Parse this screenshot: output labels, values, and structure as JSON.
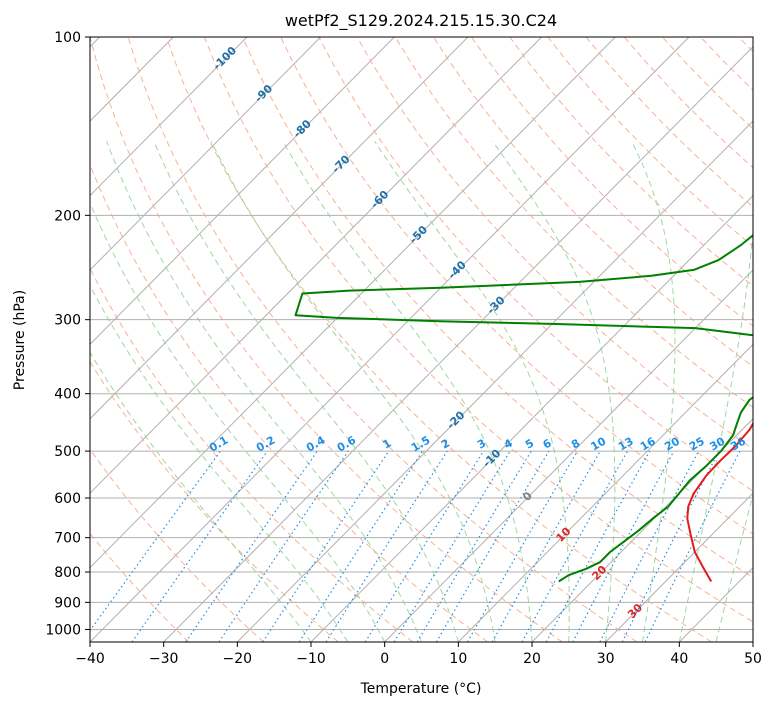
{
  "chart_data": {
    "type": "line",
    "title": "wetPf2_S129.2024.215.15.30.C24",
    "xlabel": "Temperature (°C)",
    "ylabel": "Pressure (hPa)",
    "xlim": [
      -40,
      50
    ],
    "ylim": [
      1050,
      100
    ],
    "yscale": "log",
    "grid": true,
    "x_ticks": [
      -40,
      -30,
      -20,
      -10,
      0,
      10,
      20,
      30,
      40,
      50
    ],
    "y_ticks": [
      100,
      200,
      300,
      400,
      500,
      600,
      700,
      800,
      900,
      1000
    ],
    "series": [
      {
        "role": "temperature",
        "color": "#e41a1c",
        "points": [
          [
            36.2,
            830
          ],
          [
            33.5,
            790
          ],
          [
            30,
            740
          ],
          [
            27,
            690
          ],
          [
            24.5,
            650
          ],
          [
            23,
            620
          ],
          [
            22,
            590
          ],
          [
            21.3,
            550
          ],
          [
            21.2,
            520
          ],
          [
            21.3,
            490
          ],
          [
            21,
            460
          ],
          [
            20,
            430
          ],
          [
            18.5,
            400
          ],
          [
            17.2,
            370
          ],
          [
            16,
            340
          ],
          [
            15.8,
            320
          ],
          [
            16.5,
            305
          ],
          [
            17.2,
            290
          ],
          [
            16.5,
            270
          ],
          [
            16,
            250
          ],
          [
            16,
            230
          ],
          [
            15.7,
            210
          ],
          [
            15.5,
            190
          ],
          [
            15.3,
            175
          ],
          [
            14.5,
            160
          ],
          [
            14,
            145
          ],
          [
            14,
            130
          ],
          [
            12.5,
            120
          ],
          [
            12,
            113
          ],
          [
            13,
            108
          ],
          [
            13.2,
            100
          ]
        ]
      },
      {
        "role": "dewpoint",
        "color": "#008000",
        "points": [
          [
            15.5,
            830
          ],
          [
            16,
            810
          ],
          [
            17.5,
            790
          ],
          [
            18.5,
            770
          ],
          [
            18.5,
            740
          ],
          [
            19,
            710
          ],
          [
            19.5,
            680
          ],
          [
            19.8,
            650
          ],
          [
            20.3,
            620
          ],
          [
            20,
            590
          ],
          [
            19.7,
            560
          ],
          [
            20,
            530
          ],
          [
            20,
            500
          ],
          [
            19.5,
            470
          ],
          [
            18.5,
            450
          ],
          [
            17.5,
            430
          ],
          [
            17,
            410
          ],
          [
            17.5,
            390
          ],
          [
            17.5,
            370
          ],
          [
            16.5,
            350
          ],
          [
            14.5,
            335
          ],
          [
            10,
            320
          ],
          [
            0,
            310
          ],
          [
            -20,
            305
          ],
          [
            -35,
            302
          ],
          [
            -42,
            300
          ],
          [
            -50,
            298
          ],
          [
            -56,
            295
          ],
          [
            -58,
            271
          ],
          [
            -52,
            268
          ],
          [
            -40,
            265
          ],
          [
            -22,
            259
          ],
          [
            -13,
            253
          ],
          [
            -8,
            247
          ],
          [
            -6,
            238
          ],
          [
            -5,
            225
          ],
          [
            -4.5,
            212
          ],
          [
            -5,
            198
          ],
          [
            -6,
            188
          ],
          [
            -6.7,
            175
          ],
          [
            -7.5,
            160
          ],
          [
            -7.3,
            150
          ],
          [
            -6.5,
            145
          ],
          [
            -4,
            137
          ],
          [
            -2.3,
            129
          ],
          [
            -1.5,
            121
          ],
          [
            -0.5,
            114
          ],
          [
            0.3,
            110
          ],
          [
            1.5,
            105
          ],
          [
            2,
            100
          ]
        ]
      }
    ],
    "mixing_ratio_labels": [
      "0.1",
      "0.2",
      "0.4",
      "0.6",
      "1",
      "1.5",
      "2",
      "3",
      "4",
      "5",
      "6",
      "8",
      "10",
      "13",
      "16",
      "20",
      "25",
      "30",
      "36"
    ],
    "mixing_ratio_values": [
      0.1,
      0.2,
      0.4,
      0.6,
      1,
      1.5,
      2,
      3,
      4,
      5,
      6,
      8,
      10,
      13,
      16,
      20,
      25,
      30,
      36
    ],
    "isotherm_labels": [
      {
        "text": "-100",
        "value": -100
      },
      {
        "text": "-90",
        "value": -90
      },
      {
        "text": "-80",
        "value": -80
      },
      {
        "text": "-70",
        "value": -70
      },
      {
        "text": "-60",
        "value": -60
      },
      {
        "text": "-50",
        "value": -50
      },
      {
        "text": "-40",
        "value": -40
      },
      {
        "text": "-30",
        "value": -30
      },
      {
        "text": "-20",
        "value": -20
      },
      {
        "text": "-10",
        "value": -10
      },
      {
        "text": "0",
        "value": 0
      },
      {
        "text": "10",
        "value": 10
      },
      {
        "text": "20",
        "value": 20
      },
      {
        "text": "30",
        "value": 30
      },
      {
        "text": "40",
        "value": 40
      }
    ],
    "colors": {
      "isotherm_cold": "#1f6fa8",
      "isotherm_zero": "#808080",
      "isotherm_warm": "#d62728",
      "mixing_ratio": "#1f8fe6",
      "dry_adiabat": "#f4a582",
      "moist_adiabat": "#8fcf8f",
      "grid": "#b0b0b0"
    }
  }
}
